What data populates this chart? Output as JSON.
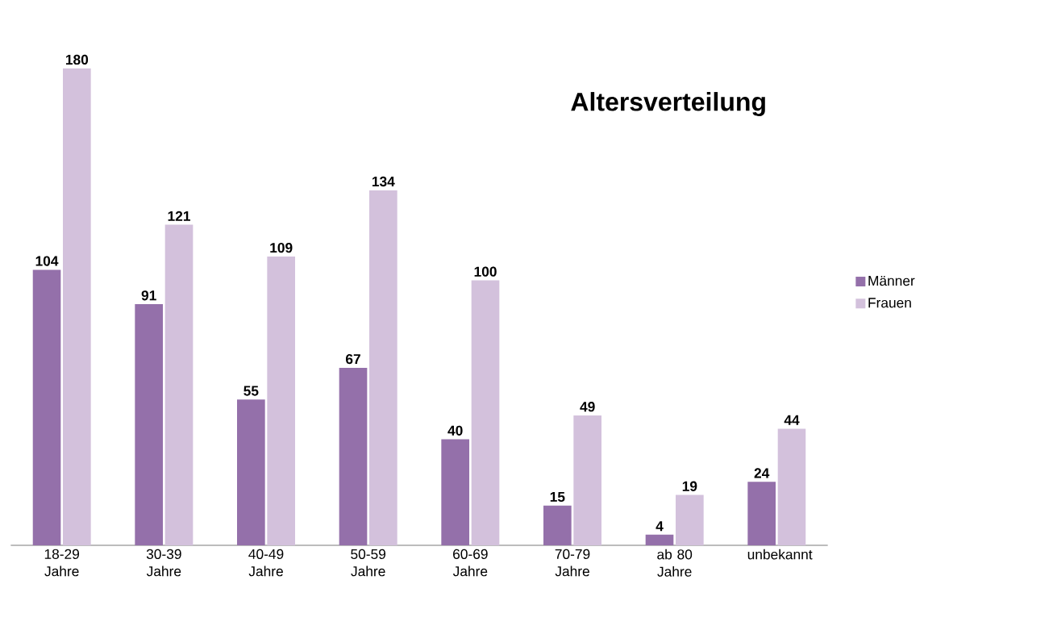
{
  "chart_data": {
    "type": "bar",
    "title": "Altersverteilung",
    "categories": [
      "18-29 Jahre",
      "30-39 Jahre",
      "40-49 Jahre",
      "50-59 Jahre",
      "60-69 Jahre",
      "70-79 Jahre",
      "ab 80 Jahre",
      "unbekannt"
    ],
    "series": [
      {
        "name": "Männer",
        "color": "#9470aa",
        "values": [
          104,
          91,
          55,
          67,
          40,
          15,
          4,
          24
        ]
      },
      {
        "name": "Frauen",
        "color": "#d3c1dc",
        "values": [
          180,
          121,
          109,
          134,
          100,
          49,
          19,
          44
        ]
      }
    ],
    "data_labels": true,
    "legend": "right"
  }
}
